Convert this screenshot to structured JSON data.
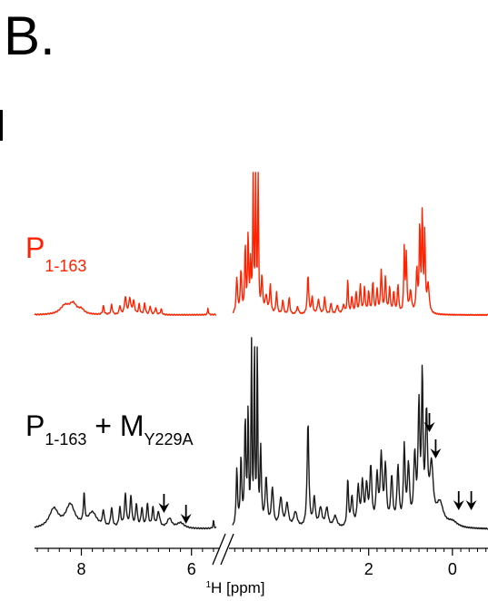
{
  "panel_label": "B.",
  "colors": {
    "top_trace": "#ff2200",
    "bottom_trace": "#1a1a1a",
    "axis": "#000000"
  },
  "chart_data": {
    "type": "line",
    "title": "",
    "xlabel_sup": "1",
    "xlabel_main": "H [ppm]",
    "x_reversed": true,
    "xlim": [
      8.85,
      -0.85
    ],
    "axis_break": {
      "between": [
        5.55,
        5.25
      ],
      "marker": "//"
    },
    "ticks_major": [
      8,
      6,
      2,
      0
    ],
    "tick_labels": [
      "8",
      "6",
      "2",
      "0"
    ],
    "ticks_minor": [
      8.8,
      8.6,
      8.4,
      8.2,
      7.8,
      7.6,
      7.4,
      7.2,
      7.0,
      6.8,
      6.6,
      6.4,
      6.2,
      5.8,
      5.6,
      5.2,
      5.0,
      4.8,
      4.6,
      4.4,
      4.2,
      4.0,
      3.8,
      3.6,
      3.4,
      3.2,
      3.0,
      2.8,
      2.6,
      2.4,
      2.2,
      1.8,
      1.6,
      1.4,
      1.2,
      1.0,
      0.8,
      0.6,
      0.4,
      0.2,
      -0.2,
      -0.4,
      -0.6,
      -0.8
    ],
    "series": [
      {
        "label_main": "P",
        "label_sub": "1-163",
        "label_rest": "",
        "label_sub2": "",
        "color": "#ff2200",
        "peaks": [
          [
            8.3,
            0.06,
            0.1
          ],
          [
            8.15,
            0.07,
            0.08
          ],
          [
            8.0,
            0.03,
            0.06
          ],
          [
            7.6,
            0.06,
            0.015
          ],
          [
            7.45,
            0.07,
            0.015
          ],
          [
            7.3,
            0.06,
            0.015
          ],
          [
            7.2,
            0.12,
            0.02
          ],
          [
            7.12,
            0.11,
            0.02
          ],
          [
            7.05,
            0.09,
            0.02
          ],
          [
            6.95,
            0.07,
            0.015
          ],
          [
            6.85,
            0.08,
            0.015
          ],
          [
            6.75,
            0.06,
            0.015
          ],
          [
            6.65,
            0.05,
            0.015
          ],
          [
            6.55,
            0.04,
            0.015
          ],
          [
            5.7,
            0.05,
            0.008
          ],
          [
            5.45,
            0.09,
            0.006
          ],
          [
            5.15,
            0.25,
            0.02
          ],
          [
            5.05,
            0.3,
            0.02
          ],
          [
            4.95,
            0.48,
            0.015
          ],
          [
            4.88,
            0.55,
            0.015
          ],
          [
            4.82,
            0.35,
            0.015
          ],
          [
            4.76,
            1.0,
            0.012
          ],
          [
            4.7,
            1.0,
            0.012
          ],
          [
            4.64,
            1.0,
            0.012
          ],
          [
            4.55,
            0.25,
            0.02
          ],
          [
            4.45,
            0.12,
            0.03
          ],
          [
            4.35,
            0.2,
            0.02
          ],
          [
            4.2,
            0.15,
            0.02
          ],
          [
            4.05,
            0.1,
            0.02
          ],
          [
            3.9,
            0.12,
            0.02
          ],
          [
            3.7,
            0.05,
            0.03
          ],
          [
            3.45,
            0.28,
            0.02
          ],
          [
            3.35,
            0.12,
            0.02
          ],
          [
            3.2,
            0.1,
            0.03
          ],
          [
            3.05,
            0.12,
            0.02
          ],
          [
            2.9,
            0.08,
            0.02
          ],
          [
            2.75,
            0.06,
            0.03
          ],
          [
            2.6,
            0.06,
            0.03
          ],
          [
            2.5,
            0.25,
            0.015
          ],
          [
            2.4,
            0.12,
            0.02
          ],
          [
            2.3,
            0.15,
            0.02
          ],
          [
            2.2,
            0.2,
            0.02
          ],
          [
            2.1,
            0.18,
            0.02
          ],
          [
            2.0,
            0.15,
            0.02
          ],
          [
            1.9,
            0.22,
            0.02
          ],
          [
            1.8,
            0.17,
            0.02
          ],
          [
            1.7,
            0.3,
            0.02
          ],
          [
            1.6,
            0.25,
            0.02
          ],
          [
            1.5,
            0.18,
            0.02
          ],
          [
            1.4,
            0.15,
            0.02
          ],
          [
            1.3,
            0.2,
            0.02
          ],
          [
            1.15,
            0.45,
            0.015
          ],
          [
            1.1,
            0.4,
            0.015
          ],
          [
            1.0,
            0.15,
            0.03
          ],
          [
            0.85,
            0.3,
            0.02
          ],
          [
            0.78,
            0.62,
            0.015
          ],
          [
            0.72,
            0.7,
            0.015
          ],
          [
            0.66,
            0.55,
            0.015
          ],
          [
            0.58,
            0.2,
            0.03
          ]
        ],
        "baseline_offset": 0.0
      },
      {
        "label_main": "P",
        "label_sub": "1-163",
        "label_rest": " + M",
        "label_sub2": "Y229A",
        "color": "#1a1a1a",
        "peaks": [
          [
            8.5,
            0.1,
            0.1
          ],
          [
            8.2,
            0.12,
            0.1
          ],
          [
            7.95,
            0.15,
            0.015
          ],
          [
            7.8,
            0.08,
            0.1
          ],
          [
            7.6,
            0.08,
            0.02
          ],
          [
            7.45,
            0.1,
            0.02
          ],
          [
            7.3,
            0.1,
            0.02
          ],
          [
            7.2,
            0.17,
            0.02
          ],
          [
            7.1,
            0.16,
            0.02
          ],
          [
            7.0,
            0.12,
            0.02
          ],
          [
            6.9,
            0.1,
            0.02
          ],
          [
            6.8,
            0.12,
            0.02
          ],
          [
            6.7,
            0.1,
            0.02
          ],
          [
            6.6,
            0.08,
            0.03
          ],
          [
            6.4,
            0.05,
            0.05
          ],
          [
            6.2,
            0.03,
            0.08
          ],
          [
            5.6,
            0.04,
            0.01
          ],
          [
            5.45,
            0.07,
            0.006
          ],
          [
            5.15,
            0.3,
            0.02
          ],
          [
            5.05,
            0.35,
            0.02
          ],
          [
            4.95,
            0.55,
            0.02
          ],
          [
            4.88,
            0.6,
            0.015
          ],
          [
            4.8,
            1.0,
            0.012
          ],
          [
            4.73,
            1.0,
            0.012
          ],
          [
            4.66,
            1.0,
            0.012
          ],
          [
            4.58,
            0.4,
            0.02
          ],
          [
            4.45,
            0.25,
            0.03
          ],
          [
            4.3,
            0.2,
            0.03
          ],
          [
            4.1,
            0.15,
            0.04
          ],
          [
            3.95,
            0.12,
            0.04
          ],
          [
            3.75,
            0.08,
            0.05
          ],
          [
            3.45,
            0.55,
            0.025
          ],
          [
            3.3,
            0.15,
            0.03
          ],
          [
            3.15,
            0.1,
            0.04
          ],
          [
            3.0,
            0.1,
            0.04
          ],
          [
            2.8,
            0.06,
            0.05
          ],
          [
            2.5,
            0.25,
            0.02
          ],
          [
            2.4,
            0.15,
            0.03
          ],
          [
            2.25,
            0.2,
            0.03
          ],
          [
            2.15,
            0.22,
            0.03
          ],
          [
            2.05,
            0.2,
            0.03
          ],
          [
            1.95,
            0.3,
            0.03
          ],
          [
            1.8,
            0.25,
            0.03
          ],
          [
            1.7,
            0.35,
            0.03
          ],
          [
            1.6,
            0.3,
            0.03
          ],
          [
            1.45,
            0.25,
            0.03
          ],
          [
            1.3,
            0.3,
            0.03
          ],
          [
            1.15,
            0.4,
            0.025
          ],
          [
            1.05,
            0.3,
            0.03
          ],
          [
            0.9,
            0.35,
            0.03
          ],
          [
            0.8,
            0.6,
            0.025
          ],
          [
            0.72,
            0.75,
            0.02
          ],
          [
            0.62,
            0.55,
            0.03
          ],
          [
            0.5,
            0.3,
            0.05
          ],
          [
            0.3,
            0.12,
            0.1
          ],
          [
            0.0,
            0.03,
            0.15
          ]
        ],
        "baseline_offset": 0.0
      }
    ],
    "arrows": [
      {
        "series": 1,
        "x": 6.5
      },
      {
        "series": 1,
        "x": 6.1
      },
      {
        "series": 1,
        "x": 0.55
      },
      {
        "series": 1,
        "x": 0.4
      },
      {
        "series": 1,
        "x": -0.15
      },
      {
        "series": 1,
        "x": -0.45
      }
    ]
  }
}
